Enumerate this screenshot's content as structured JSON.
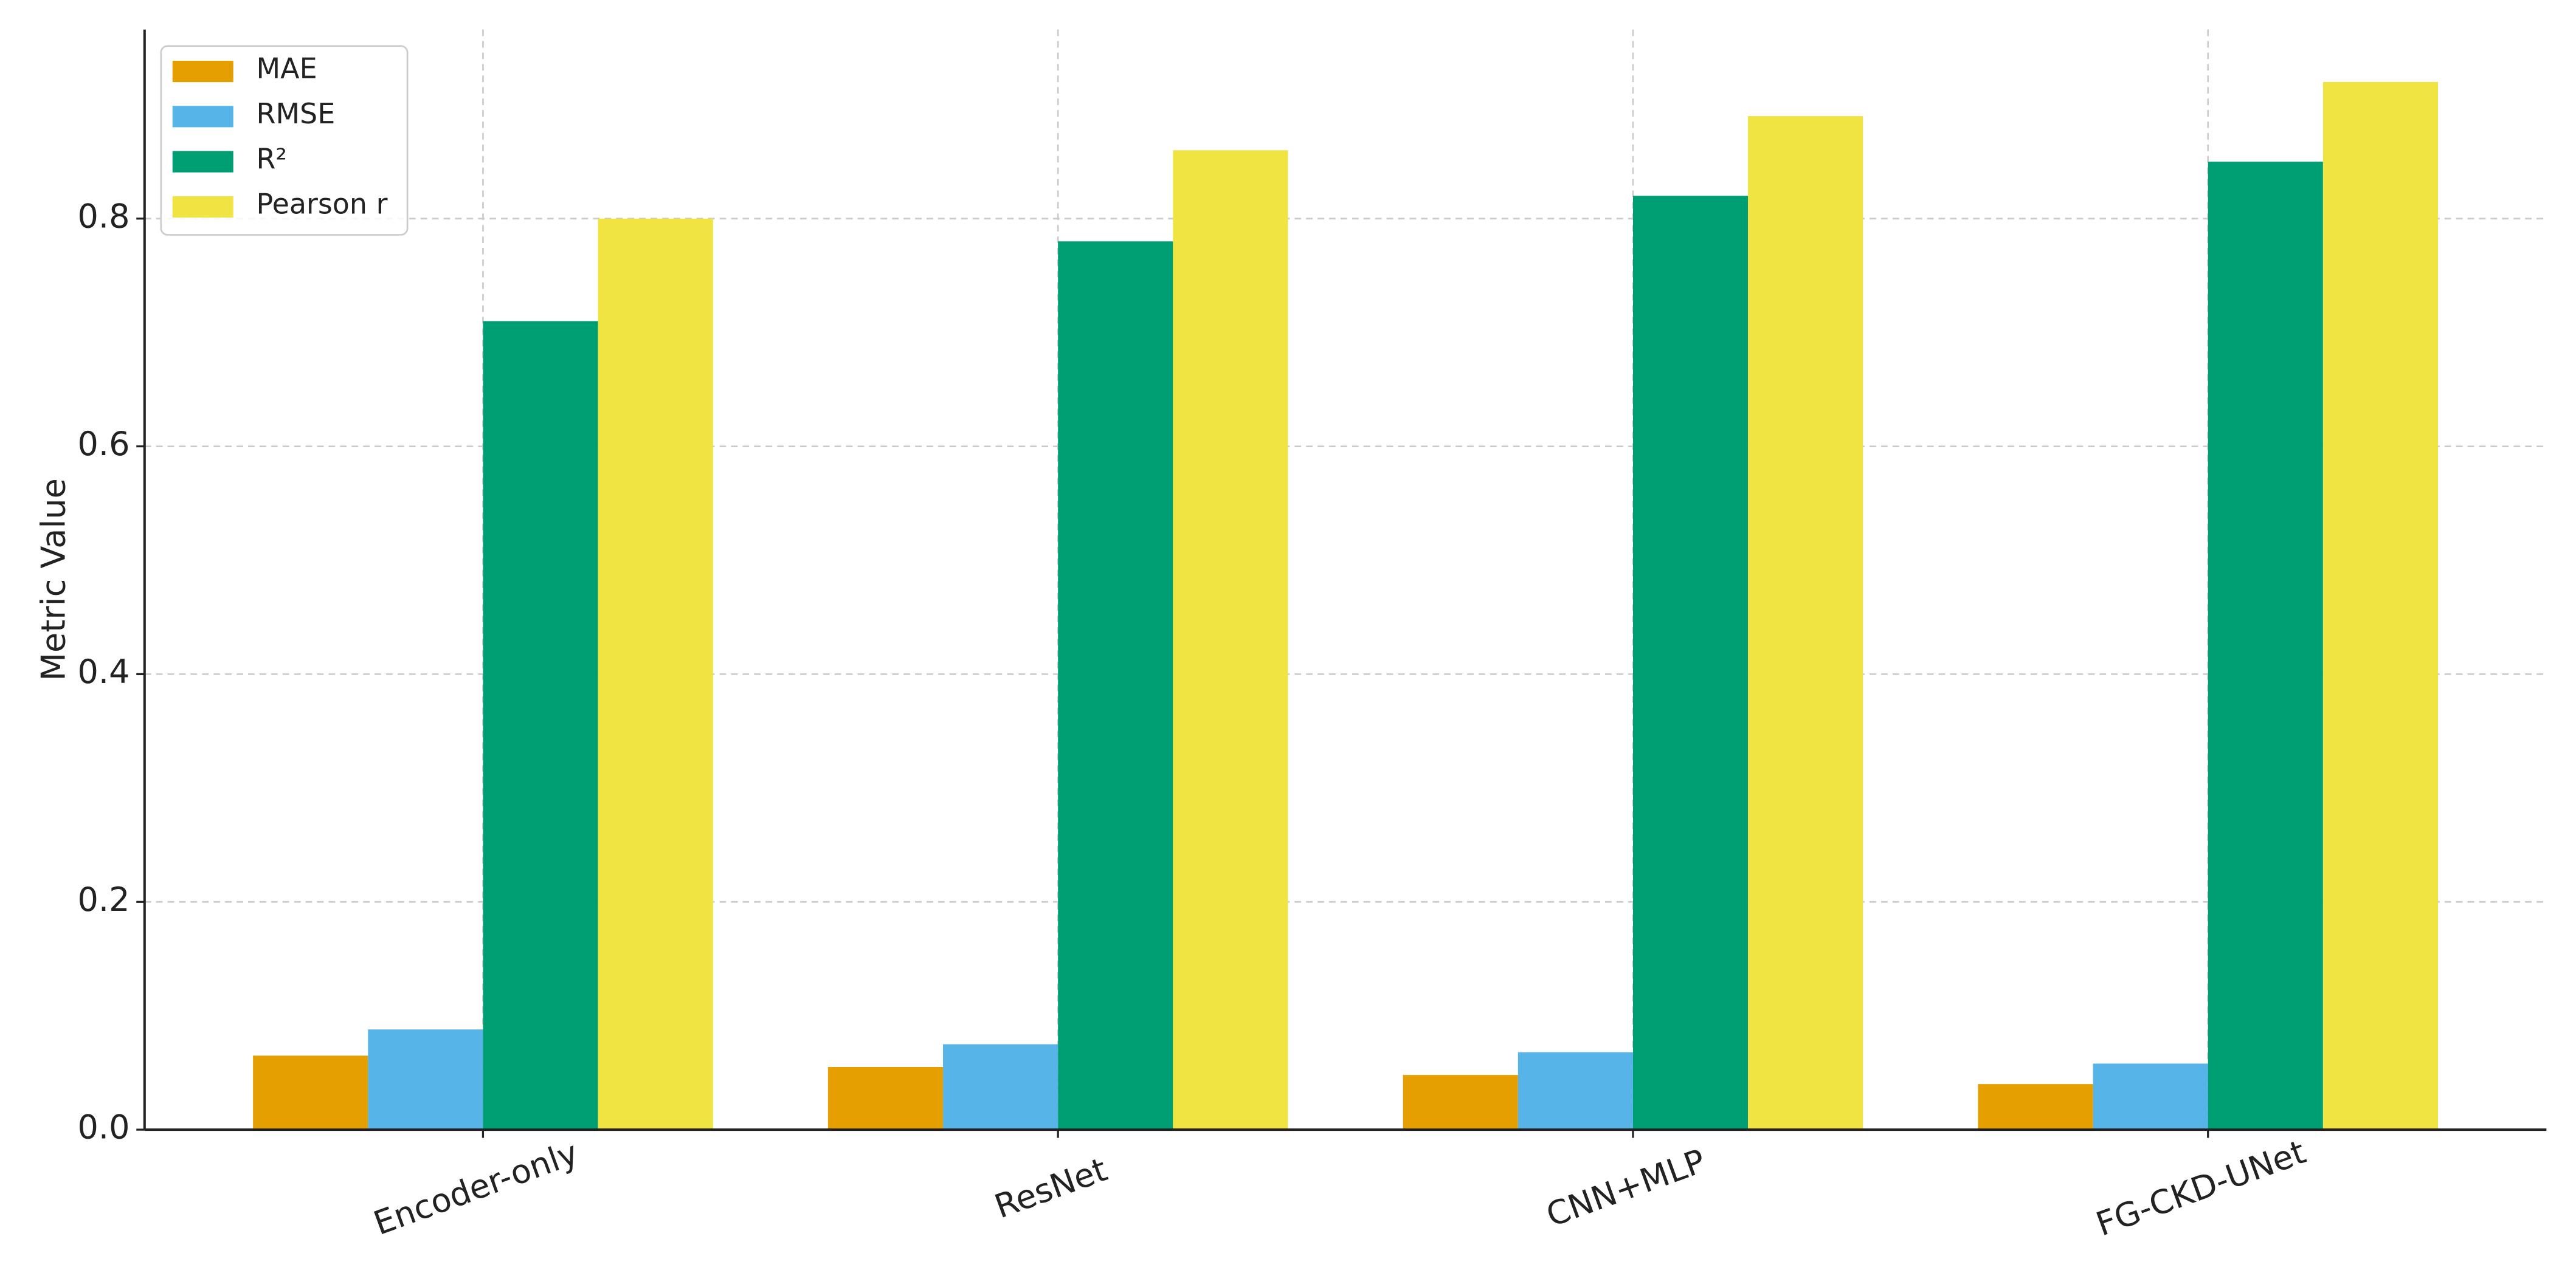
{
  "chart_data": {
    "type": "bar",
    "y_label": "Metric Value",
    "categories": [
      "Encoder-only",
      "ResNet",
      "CNN+MLP",
      "FG-CKD-UNet"
    ],
    "series": [
      {
        "name": "MAE",
        "color": "#e69f00",
        "values": [
          0.065,
          0.055,
          0.048,
          0.04
        ]
      },
      {
        "name": "RMSE",
        "color": "#56b4e9",
        "values": [
          0.088,
          0.075,
          0.068,
          0.058
        ]
      },
      {
        "name": "R²",
        "color": "#009e73",
        "values": [
          0.71,
          0.78,
          0.82,
          0.85
        ]
      },
      {
        "name": "Pearson r",
        "color": "#f0e442",
        "values": [
          0.8,
          0.86,
          0.89,
          0.92
        ]
      }
    ],
    "ylim": [
      0,
      0.966
    ],
    "yticks": [
      {
        "value": 0,
        "label": "0.0"
      },
      0.2,
      0.4,
      0.6,
      0.8
    ],
    "grid": true,
    "legend": "upper-left"
  }
}
